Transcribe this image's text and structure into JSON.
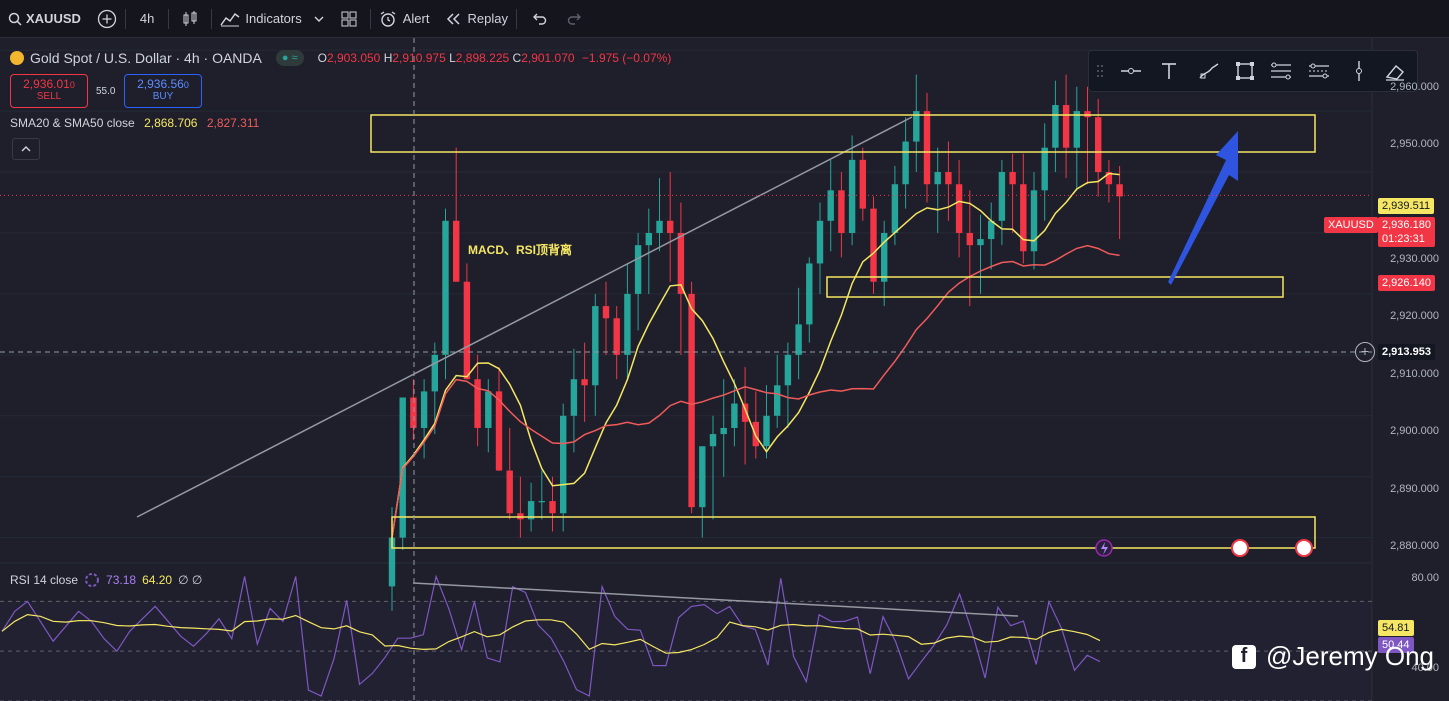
{
  "toolbar": {
    "symbol": "XAUUSD",
    "interval": "4h",
    "indicators_label": "Indicators",
    "alert_label": "Alert",
    "replay_label": "Replay"
  },
  "legend": {
    "title": "Gold Spot / U.S. Dollar · 4h · OANDA",
    "ohlc": {
      "o_label": "O",
      "o": "2,903.050",
      "h_label": "H",
      "h": "2,910.975",
      "l_label": "L",
      "l": "2,898.225",
      "c_label": "C",
      "c": "2,901.070",
      "change": "−1.975 (−0.07%)"
    },
    "sell_price": "2,936.01",
    "sell_price_small": "0",
    "sell_label": "SELL",
    "buy_price": "2,936.56",
    "buy_price_small": "0",
    "buy_label": "BUY",
    "spread": "55.0"
  },
  "sma": {
    "label": "SMA20 & SMA50 close",
    "sma20": "2,868.706",
    "sma50": "2,827.311"
  },
  "rsi": {
    "label": "RSI 14 close",
    "rsi_value": "73.18",
    "rsi_ma": "64.20",
    "extra": "∅ ∅",
    "axis": [
      "80.00",
      "40.00"
    ],
    "tag_ma": "54.81",
    "tag_rsi": "50.44"
  },
  "annotation": "MACD、RSI顶背离",
  "price_axis": [
    "2,960.000",
    "2,950.000",
    "2,940.000",
    "2,930.000",
    "2,920.000",
    "2,910.000",
    "2,900.000",
    "2,890.000",
    "2,880.000"
  ],
  "price_tags": {
    "sma_yellow": "2,939.511",
    "current_symbol": "XAUUSD",
    "current_price": "2,936.180",
    "countdown": "01:23:31",
    "sma_red": "2,926.140",
    "crosshair": "2,913.953"
  },
  "watermark": "@Jeremy Ong",
  "colors": {
    "up": "#26a69a",
    "down": "#f23645",
    "sma20": "#f5e663",
    "sma50": "#f05a5a",
    "rsi": "#7e57c2",
    "box": "#f5e663",
    "arrow": "#2f55e0"
  },
  "chart_data": {
    "type": "candlestick",
    "candles_ohlc": [
      [
        2872,
        2885,
        2868,
        2880
      ],
      [
        2880,
        2903,
        2878,
        2903
      ],
      [
        2903,
        2906,
        2896,
        2898
      ],
      [
        2898,
        2906,
        2893,
        2904
      ],
      [
        2904,
        2912,
        2897,
        2910
      ],
      [
        2910,
        2934,
        2906,
        2932
      ],
      [
        2932,
        2944,
        2925,
        2922
      ],
      [
        2922,
        2925,
        2906,
        2906
      ],
      [
        2906,
        2910,
        2895,
        2898
      ],
      [
        2898,
        2906,
        2894,
        2904
      ],
      [
        2904,
        2908,
        2891,
        2891
      ],
      [
        2891,
        2898,
        2883,
        2884
      ],
      [
        2884,
        2890,
        2880,
        2883
      ],
      [
        2883,
        2889,
        2881,
        2886
      ],
      [
        2886,
        2891,
        2883,
        2886
      ],
      [
        2886,
        2890,
        2881,
        2884
      ],
      [
        2884,
        2902,
        2881,
        2900
      ],
      [
        2900,
        2911,
        2894,
        2906
      ],
      [
        2906,
        2912,
        2899,
        2905
      ],
      [
        2905,
        2920,
        2900,
        2918
      ],
      [
        2918,
        2922,
        2910,
        2916
      ],
      [
        2916,
        2918,
        2906,
        2910
      ],
      [
        2910,
        2925,
        2906,
        2920
      ],
      [
        2920,
        2930,
        2914,
        2928
      ],
      [
        2928,
        2934,
        2920,
        2930
      ],
      [
        2930,
        2939,
        2927,
        2932
      ],
      [
        2932,
        2940,
        2922,
        2930
      ],
      [
        2930,
        2935,
        2910,
        2920
      ],
      [
        2920,
        2922,
        2884,
        2885
      ],
      [
        2885,
        2890,
        2880,
        2895
      ],
      [
        2895,
        2900,
        2883,
        2897
      ],
      [
        2897,
        2906,
        2890,
        2898
      ],
      [
        2898,
        2906,
        2895,
        2902
      ],
      [
        2902,
        2908,
        2892,
        2899
      ],
      [
        2899,
        2904,
        2893,
        2895
      ],
      [
        2895,
        2905,
        2893,
        2900
      ],
      [
        2900,
        2910,
        2898,
        2905
      ],
      [
        2905,
        2912,
        2898,
        2910
      ],
      [
        2910,
        2921,
        2906,
        2915
      ],
      [
        2915,
        2926,
        2912,
        2925
      ],
      [
        2925,
        2935,
        2920,
        2932
      ],
      [
        2932,
        2942,
        2927,
        2937
      ],
      [
        2937,
        2940,
        2926,
        2930
      ],
      [
        2930,
        2946,
        2928,
        2942
      ],
      [
        2942,
        2944,
        2932,
        2934
      ],
      [
        2934,
        2936,
        2920,
        2922
      ],
      [
        2922,
        2932,
        2918,
        2930
      ],
      [
        2930,
        2941,
        2928,
        2938
      ],
      [
        2938,
        2949,
        2934,
        2945
      ],
      [
        2945,
        2956,
        2940,
        2950
      ],
      [
        2950,
        2953,
        2935,
        2938
      ],
      [
        2938,
        2944,
        2930,
        2940
      ],
      [
        2940,
        2945,
        2932,
        2938
      ],
      [
        2938,
        2942,
        2926,
        2930
      ],
      [
        2930,
        2937,
        2918,
        2928
      ],
      [
        2928,
        2933,
        2920,
        2929
      ],
      [
        2929,
        2935,
        2924,
        2932
      ],
      [
        2932,
        2942,
        2928,
        2940
      ],
      [
        2940,
        2943,
        2930,
        2938
      ],
      [
        2938,
        2943,
        2925,
        2927
      ],
      [
        2927,
        2940,
        2924,
        2937
      ],
      [
        2937,
        2948,
        2932,
        2944
      ],
      [
        2944,
        2955,
        2940,
        2951
      ],
      [
        2951,
        2956,
        2939,
        2944
      ],
      [
        2944,
        2954,
        2937,
        2950
      ],
      [
        2950,
        2954,
        2938,
        2949
      ],
      [
        2949,
        2952,
        2936,
        2940
      ],
      [
        2940,
        2942,
        2935,
        2938
      ],
      [
        2938,
        2941,
        2929,
        2936
      ]
    ],
    "sma20_end": 2939.511,
    "sma50_end": 2926.14,
    "current_price": 2936.18,
    "y_range": [
      2876,
      2962
    ],
    "rsi_range": [
      30,
      85
    ]
  }
}
